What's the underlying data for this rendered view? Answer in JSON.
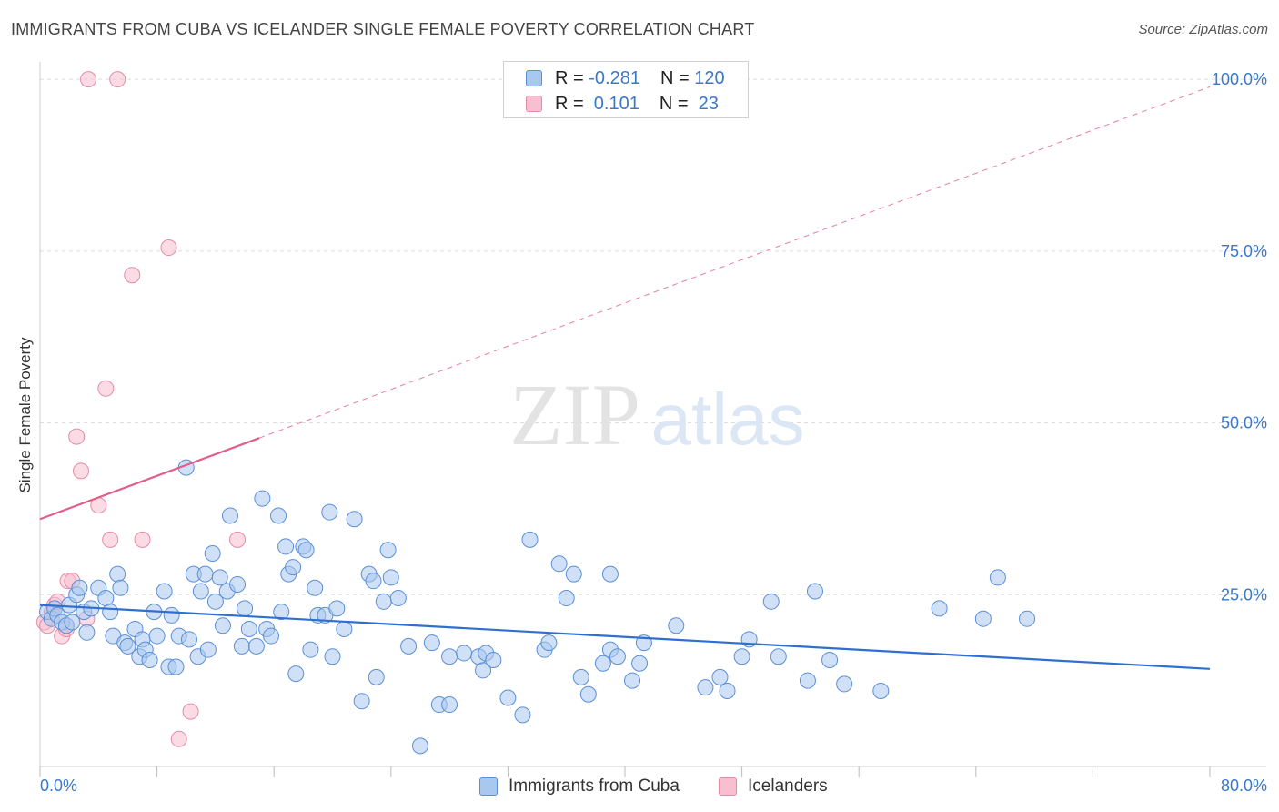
{
  "title": "IMMIGRANTS FROM CUBA VS ICELANDER SINGLE FEMALE POVERTY CORRELATION CHART",
  "source": "Source: ZipAtlas.com",
  "watermark": {
    "zip": "ZIP",
    "atlas": "atlas"
  },
  "legend": {
    "cuba": {
      "r_label": "R = ",
      "r_value": "-0.281",
      "n_label": "N = ",
      "n_value": "120"
    },
    "iceland": {
      "r_label": "R = ",
      "r_value": " 0.101",
      "n_label": "N = ",
      "n_value": " 23"
    }
  },
  "bottom_legend": {
    "cuba": "Immigrants from Cuba",
    "iceland": "Icelanders"
  },
  "colors": {
    "cuba_fill": "#a9c8f0",
    "cuba_stroke": "#5b8fd6",
    "cuba_line": "#2e6fd0",
    "iceland_fill": "#f7bfd0",
    "iceland_stroke": "#e58aa8",
    "iceland_line": "#e0608a",
    "grid": "#dcdcdc",
    "tick_text": "#3a78c9"
  },
  "chart_data": {
    "type": "scatter",
    "title": "IMMIGRANTS FROM CUBA VS ICELANDER SINGLE FEMALE POVERTY CORRELATION CHART",
    "xlabel": "",
    "ylabel": "Single Female Poverty",
    "xlim": [
      0,
      80
    ],
    "ylim": [
      0,
      102
    ],
    "x_tick_labels": {
      "min": "0.0%",
      "max": "80.0%"
    },
    "y_ticks": [
      25,
      50,
      75,
      100
    ],
    "y_tick_labels": [
      "25.0%",
      "50.0%",
      "75.0%",
      "100.0%"
    ],
    "grid": true,
    "legend_position": "top-center",
    "series": [
      {
        "name": "Immigrants from Cuba",
        "r": -0.281,
        "n": 120,
        "trend": {
          "x": [
            0,
            80
          ],
          "y": [
            23.5,
            14.2
          ],
          "dashed_extension": false
        },
        "points": [
          [
            0.5,
            22.5
          ],
          [
            0.8,
            21.5
          ],
          [
            1.0,
            23.0
          ],
          [
            1.2,
            22.0
          ],
          [
            1.5,
            21.0
          ],
          [
            1.8,
            20.5
          ],
          [
            2.0,
            23.5
          ],
          [
            2.2,
            21.0
          ],
          [
            2.5,
            25.0
          ],
          [
            2.7,
            26.0
          ],
          [
            3.0,
            22.5
          ],
          [
            3.2,
            19.5
          ],
          [
            3.5,
            23.0
          ],
          [
            4.0,
            26.0
          ],
          [
            4.5,
            24.5
          ],
          [
            4.8,
            22.5
          ],
          [
            5.0,
            19.0
          ],
          [
            5.3,
            28.0
          ],
          [
            5.5,
            26.0
          ],
          [
            5.8,
            18.0
          ],
          [
            6.0,
            17.5
          ],
          [
            6.5,
            20.0
          ],
          [
            6.8,
            16.0
          ],
          [
            7.0,
            18.5
          ],
          [
            7.2,
            17.0
          ],
          [
            7.5,
            15.5
          ],
          [
            7.8,
            22.5
          ],
          [
            8.0,
            19.0
          ],
          [
            8.5,
            25.5
          ],
          [
            8.8,
            14.5
          ],
          [
            9.0,
            22.0
          ],
          [
            9.3,
            14.5
          ],
          [
            9.5,
            19.0
          ],
          [
            10.0,
            43.5
          ],
          [
            10.2,
            18.5
          ],
          [
            10.5,
            28.0
          ],
          [
            10.8,
            16.0
          ],
          [
            11.0,
            25.5
          ],
          [
            11.3,
            28.0
          ],
          [
            11.5,
            17.0
          ],
          [
            11.8,
            31.0
          ],
          [
            12.0,
            24.0
          ],
          [
            12.3,
            27.5
          ],
          [
            12.5,
            20.5
          ],
          [
            12.8,
            25.5
          ],
          [
            13.0,
            36.5
          ],
          [
            13.5,
            26.5
          ],
          [
            13.8,
            17.5
          ],
          [
            14.0,
            23.0
          ],
          [
            14.3,
            20.0
          ],
          [
            14.8,
            17.5
          ],
          [
            15.2,
            39.0
          ],
          [
            15.5,
            20.0
          ],
          [
            15.8,
            19.0
          ],
          [
            16.3,
            36.5
          ],
          [
            16.5,
            22.5
          ],
          [
            16.8,
            32.0
          ],
          [
            17.0,
            28.0
          ],
          [
            17.3,
            29.0
          ],
          [
            17.5,
            13.5
          ],
          [
            18.0,
            32.0
          ],
          [
            18.2,
            31.5
          ],
          [
            18.5,
            17.0
          ],
          [
            18.8,
            26.0
          ],
          [
            19.0,
            22.0
          ],
          [
            19.5,
            22.0
          ],
          [
            19.8,
            37.0
          ],
          [
            20.0,
            16.0
          ],
          [
            20.3,
            23.0
          ],
          [
            20.8,
            20.0
          ],
          [
            21.5,
            36.0
          ],
          [
            22.0,
            9.5
          ],
          [
            22.5,
            28.0
          ],
          [
            22.8,
            27.0
          ],
          [
            23.0,
            13.0
          ],
          [
            23.5,
            24.0
          ],
          [
            23.8,
            31.5
          ],
          [
            24.0,
            27.5
          ],
          [
            24.5,
            24.5
          ],
          [
            25.2,
            17.5
          ],
          [
            26.0,
            3.0
          ],
          [
            26.8,
            18.0
          ],
          [
            27.3,
            9.0
          ],
          [
            28.0,
            9.0
          ],
          [
            28.0,
            16.0
          ],
          [
            29.0,
            16.5
          ],
          [
            30.0,
            16.0
          ],
          [
            30.3,
            14.0
          ],
          [
            30.5,
            16.5
          ],
          [
            31.0,
            15.5
          ],
          [
            32.0,
            10.0
          ],
          [
            33.0,
            7.5
          ],
          [
            33.5,
            33.0
          ],
          [
            34.5,
            17.0
          ],
          [
            34.8,
            18.0
          ],
          [
            35.5,
            29.5
          ],
          [
            36.0,
            24.5
          ],
          [
            36.5,
            28.0
          ],
          [
            37.0,
            13.0
          ],
          [
            37.5,
            10.5
          ],
          [
            38.5,
            15.0
          ],
          [
            39.0,
            28.0
          ],
          [
            39.0,
            17.0
          ],
          [
            39.5,
            16.0
          ],
          [
            40.5,
            12.5
          ],
          [
            41.0,
            15.0
          ],
          [
            41.3,
            18.0
          ],
          [
            43.5,
            20.5
          ],
          [
            45.5,
            11.5
          ],
          [
            46.5,
            13.0
          ],
          [
            47.0,
            11.0
          ],
          [
            48.0,
            16.0
          ],
          [
            48.5,
            18.5
          ],
          [
            50.0,
            24.0
          ],
          [
            50.5,
            16.0
          ],
          [
            52.5,
            12.5
          ],
          [
            53.0,
            25.5
          ],
          [
            54.0,
            15.5
          ],
          [
            55.0,
            12.0
          ],
          [
            57.5,
            11.0
          ],
          [
            61.5,
            23.0
          ],
          [
            64.5,
            21.5
          ],
          [
            65.5,
            27.5
          ],
          [
            67.5,
            21.5
          ]
        ]
      },
      {
        "name": "Icelanders",
        "r": 0.101,
        "n": 23,
        "trend": {
          "x": [
            0,
            15
          ],
          "y": [
            36.0,
            47.8
          ],
          "extension": {
            "x": [
              15,
              80
            ],
            "y": [
              47.8,
              98.9
            ],
            "dashed": true
          }
        },
        "points": [
          [
            0.3,
            21.0
          ],
          [
            0.5,
            20.5
          ],
          [
            0.8,
            22.5
          ],
          [
            1.0,
            23.5
          ],
          [
            1.2,
            24.0
          ],
          [
            1.5,
            19.0
          ],
          [
            1.8,
            20.0
          ],
          [
            1.9,
            27.0
          ],
          [
            2.2,
            27.0
          ],
          [
            2.5,
            48.0
          ],
          [
            2.8,
            43.0
          ],
          [
            3.2,
            21.5
          ],
          [
            3.3,
            100.0
          ],
          [
            4.0,
            38.0
          ],
          [
            4.5,
            55.0
          ],
          [
            4.8,
            33.0
          ],
          [
            5.3,
            100.0
          ],
          [
            6.3,
            71.5
          ],
          [
            7.0,
            33.0
          ],
          [
            8.8,
            75.5
          ],
          [
            9.5,
            4.0
          ],
          [
            10.3,
            8.0
          ],
          [
            13.5,
            33.0
          ]
        ]
      }
    ]
  }
}
